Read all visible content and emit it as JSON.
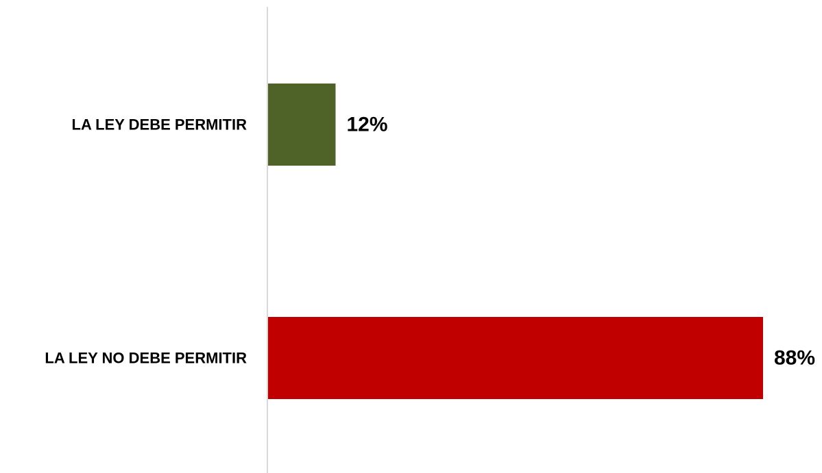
{
  "chart_data": {
    "type": "bar",
    "orientation": "horizontal",
    "categories": [
      "LA LEY DEBE PERMITIR",
      "LA LEY NO DEBE PERMITIR"
    ],
    "values": [
      12,
      88
    ],
    "value_labels": [
      "12%",
      "88%"
    ],
    "colors": [
      "#4F6228",
      "#C00000"
    ],
    "xlim": [
      0,
      88
    ],
    "grid": false,
    "legend": "none"
  }
}
